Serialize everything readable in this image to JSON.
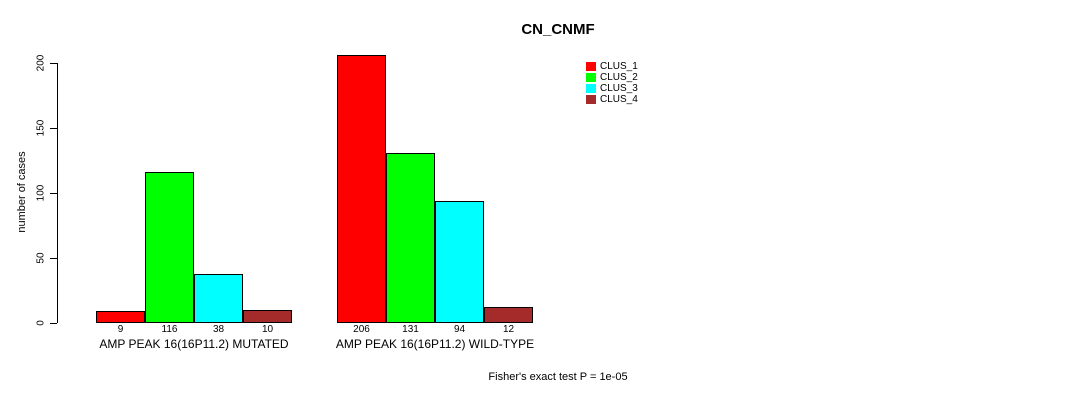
{
  "chart_data": {
    "type": "bar",
    "title": "CN_CNMF",
    "xlabel": "",
    "ylabel": "number of cases",
    "ylim": [
      0,
      200
    ],
    "yticks": [
      0,
      50,
      100,
      150,
      200
    ],
    "grid": false,
    "legend_position": "top-right",
    "bar_value_labels": true,
    "categories": [
      "AMP PEAK 16(16P11.2) MUTATED",
      "AMP PEAK 16(16P11.2) WILD-TYPE"
    ],
    "series": [
      {
        "name": "CLUS_1",
        "color": "#ff0000",
        "values": [
          9,
          206
        ]
      },
      {
        "name": "CLUS_2",
        "color": "#00ff00",
        "values": [
          116,
          131
        ]
      },
      {
        "name": "CLUS_3",
        "color": "#00ffff",
        "values": [
          38,
          94
        ]
      },
      {
        "name": "CLUS_4",
        "color": "#a52a2a",
        "values": [
          10,
          12
        ]
      }
    ],
    "annotation": "Fisher's exact test P = 1e-05"
  },
  "colors": {
    "background": "#ffffff",
    "axis": "#000000",
    "text": "#000000"
  }
}
